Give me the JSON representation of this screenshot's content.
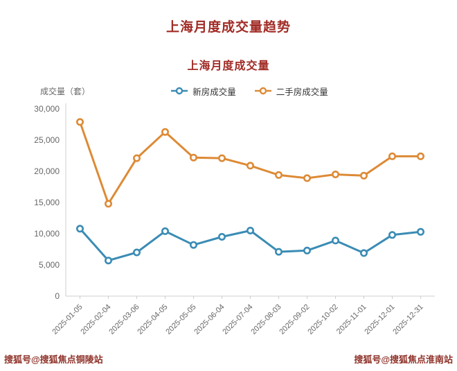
{
  "page": {
    "title": "上海月度成交量趋势",
    "watermark_left": "搜狐号@搜狐焦点铜陵站",
    "watermark_right": "搜狐号@搜狐焦点淮南站"
  },
  "chart_data": {
    "type": "line",
    "title": "上海月度成交量",
    "ylabel": "成交量（套）",
    "xlabel": "",
    "categories": [
      "2025-01-05",
      "2025-02-04",
      "2025-03-06",
      "2025-04-05",
      "2025-05-05",
      "2025-06-04",
      "2025-07-04",
      "2025-08-03",
      "2025-09-02",
      "2025-10-02",
      "2025-11-01",
      "2025-12-01",
      "2025-12-31"
    ],
    "series": [
      {
        "name": "新房成交量",
        "color": "#3a8cb4",
        "values": [
          10800,
          5700,
          7000,
          10400,
          8200,
          9500,
          10500,
          7100,
          7300,
          8900,
          6900,
          9800,
          10300
        ]
      },
      {
        "name": "二手房成交量",
        "color": "#dd8a35",
        "values": [
          27900,
          14800,
          22100,
          26300,
          22200,
          22100,
          20900,
          19400,
          18900,
          19500,
          19300,
          22400,
          22400
        ]
      }
    ],
    "ylim": [
      0,
      30000
    ],
    "ytick_step": 5000,
    "legend_position": "top",
    "grid": false
  }
}
